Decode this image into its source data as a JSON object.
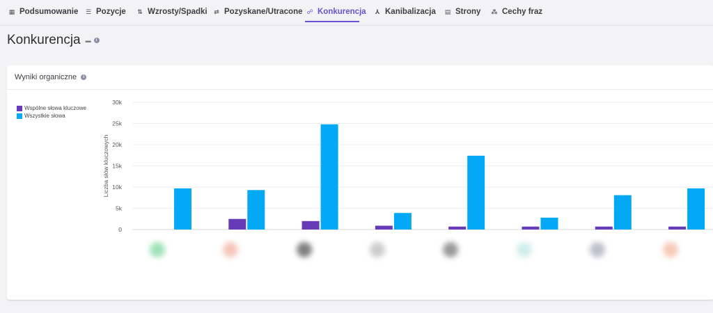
{
  "tabs": [
    {
      "label": "Podsumowanie",
      "icon": "grid-icon",
      "active": false
    },
    {
      "label": "Pozycje",
      "icon": "list-icon",
      "active": false
    },
    {
      "label": "Wzrosty/Spadki",
      "icon": "up-down-arrows-icon",
      "active": false
    },
    {
      "label": "Pozyskane/Utracone",
      "icon": "swap-arrows-icon",
      "active": false
    },
    {
      "label": "Konkurencja",
      "icon": "users-icon",
      "active": true
    },
    {
      "label": "Kanibalizacja",
      "icon": "merge-icon",
      "active": false
    },
    {
      "label": "Strony",
      "icon": "page-icon",
      "active": false
    },
    {
      "label": "Cechy fraz",
      "icon": "shapes-icon",
      "active": false
    }
  ],
  "page": {
    "title": "Konkurencja"
  },
  "card": {
    "title": "Wyniki organiczne"
  },
  "colors": {
    "accent": "#6b4fd6",
    "common": "#673ab7",
    "all": "#03a9f4"
  },
  "chart_data": {
    "type": "bar",
    "ylabel": "Liczba słów kluczowych",
    "ylim": [
      0,
      30000
    ],
    "yticks": [
      "0",
      "5k",
      "10k",
      "15k",
      "20k",
      "25k",
      "30k"
    ],
    "ytick_values": [
      0,
      5000,
      10000,
      15000,
      20000,
      25000,
      30000
    ],
    "categories": [
      "",
      "",
      "",
      "",
      "",
      "",
      "",
      ""
    ],
    "series": [
      {
        "name": "Wspólne słowa kluczowe",
        "values": [
          0,
          2500,
          2000,
          900,
          700,
          700,
          700,
          700
        ]
      },
      {
        "name": "Wszystkie słowa",
        "values": [
          9700,
          9300,
          24800,
          3900,
          17400,
          2800,
          8100,
          9700
        ]
      }
    ],
    "legend": "top-left",
    "grid": true
  }
}
